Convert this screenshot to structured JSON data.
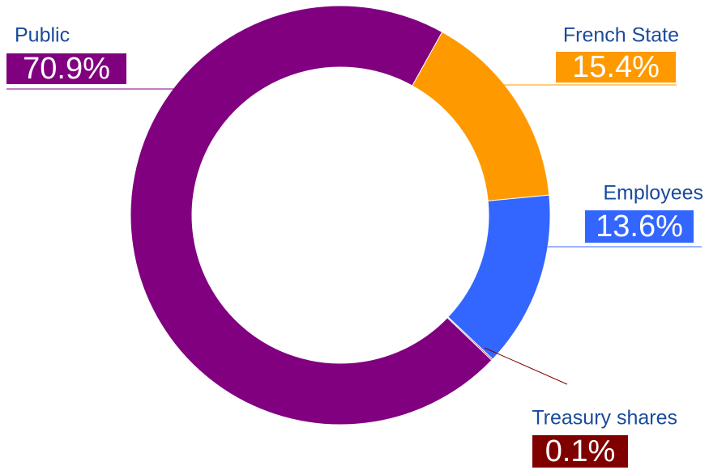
{
  "chart_data": {
    "type": "donut",
    "categories": [
      "Public",
      "French State",
      "Employees",
      "Treasury shares"
    ],
    "values": [
      70.9,
      15.4,
      13.6,
      0.1
    ],
    "value_labels": [
      "70.9%",
      "15.4%",
      "13.6%",
      "0.1%"
    ],
    "colors": [
      "#800080",
      "#ff9900",
      "#3366ff",
      "#800000"
    ]
  }
}
